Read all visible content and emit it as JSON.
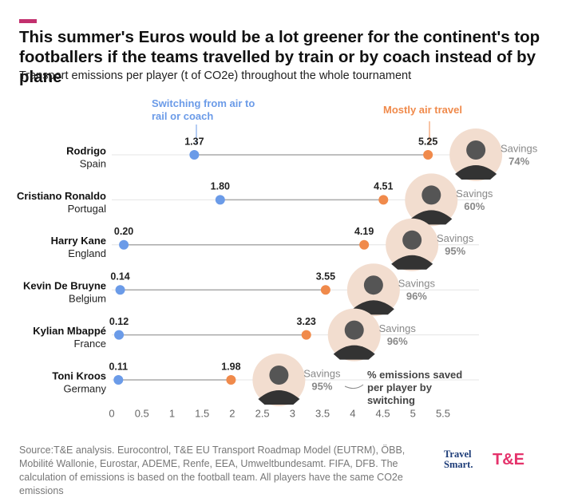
{
  "chart_data": {
    "type": "dumbbell",
    "title": "This summer's Euros would be a lot greener for the continent's top footballers if the teams travelled by train or by coach instead of by plane",
    "subtitle": "Transport emissions per player (t of CO2e) throughout the whole tournament",
    "categories": [
      "Rodrigo",
      "Cristiano Ronaldo",
      "Harry Kane",
      "Kevin De Bruyne",
      "Kylian Mbappé",
      "Toni Kroos"
    ],
    "subcategories": [
      "Spain",
      "Portugal",
      "England",
      "Belgium",
      "France",
      "Germany"
    ],
    "series": [
      {
        "name": "Switching from air to rail or coach",
        "color": "#6b9be8",
        "values": [
          1.37,
          1.8,
          0.2,
          0.14,
          0.12,
          0.11
        ],
        "value_labels": [
          "1.37",
          "1.80",
          "0.20",
          "0.14",
          "0.12",
          "0.11"
        ]
      },
      {
        "name": "Mostly air travel",
        "color": "#f08a4b",
        "values": [
          5.25,
          4.51,
          4.19,
          3.55,
          3.23,
          1.98
        ],
        "value_labels": [
          "5.25",
          "4.51",
          "4.19",
          "3.55",
          "3.23",
          "1.98"
        ]
      }
    ],
    "savings": {
      "name": "Savings",
      "values": [
        74,
        60,
        95,
        96,
        96,
        95
      ],
      "value_labels": [
        "74%",
        "60%",
        "95%",
        "96%",
        "96%",
        "95%"
      ]
    },
    "annotation": "% emissions saved per player by switching",
    "xlim": [
      0,
      5.5
    ],
    "xticks": [
      0,
      0.5,
      1,
      1.5,
      2,
      2.5,
      3,
      3.5,
      4,
      4.5,
      5,
      5.5
    ],
    "source": "Source:T&E analysis. Eurocontrol, T&E EU Transport Roadmap Model (EUTRM), ÖBB, Mobilité Wallonie, Eurostar, ADEME, Renfe, EEA, Umweltbundesamt. FIFA, DFB. The calculation of emissions is based on the football team. All players have the same CO2e emissions",
    "logos": [
      "Travel Smart.",
      "T&E"
    ]
  }
}
